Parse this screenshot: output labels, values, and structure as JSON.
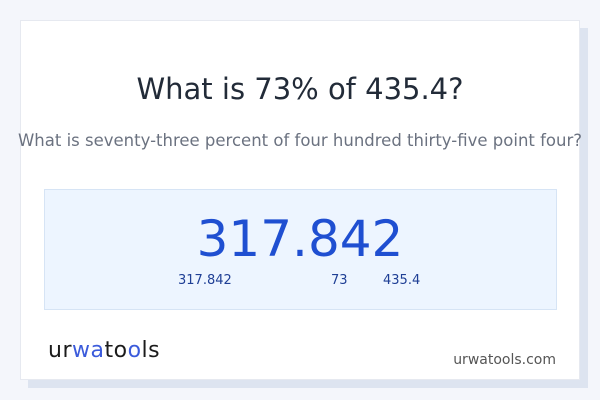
{
  "title": "What is 73% of 435.4?",
  "subtitle": "What is seventy-three percent of four hundred thirty-five point four?",
  "result": "317.842",
  "breakdown": {
    "result": "317.842",
    "percent": "73",
    "base": "435.4"
  },
  "footer": {
    "logo": "urwatools",
    "logo_parts": [
      "ur",
      "wa",
      "to",
      "o",
      "ls"
    ],
    "site": "urwatools.com"
  },
  "colors": {
    "accent": "#1f4fd1",
    "box_bg": "#edf5ff"
  }
}
